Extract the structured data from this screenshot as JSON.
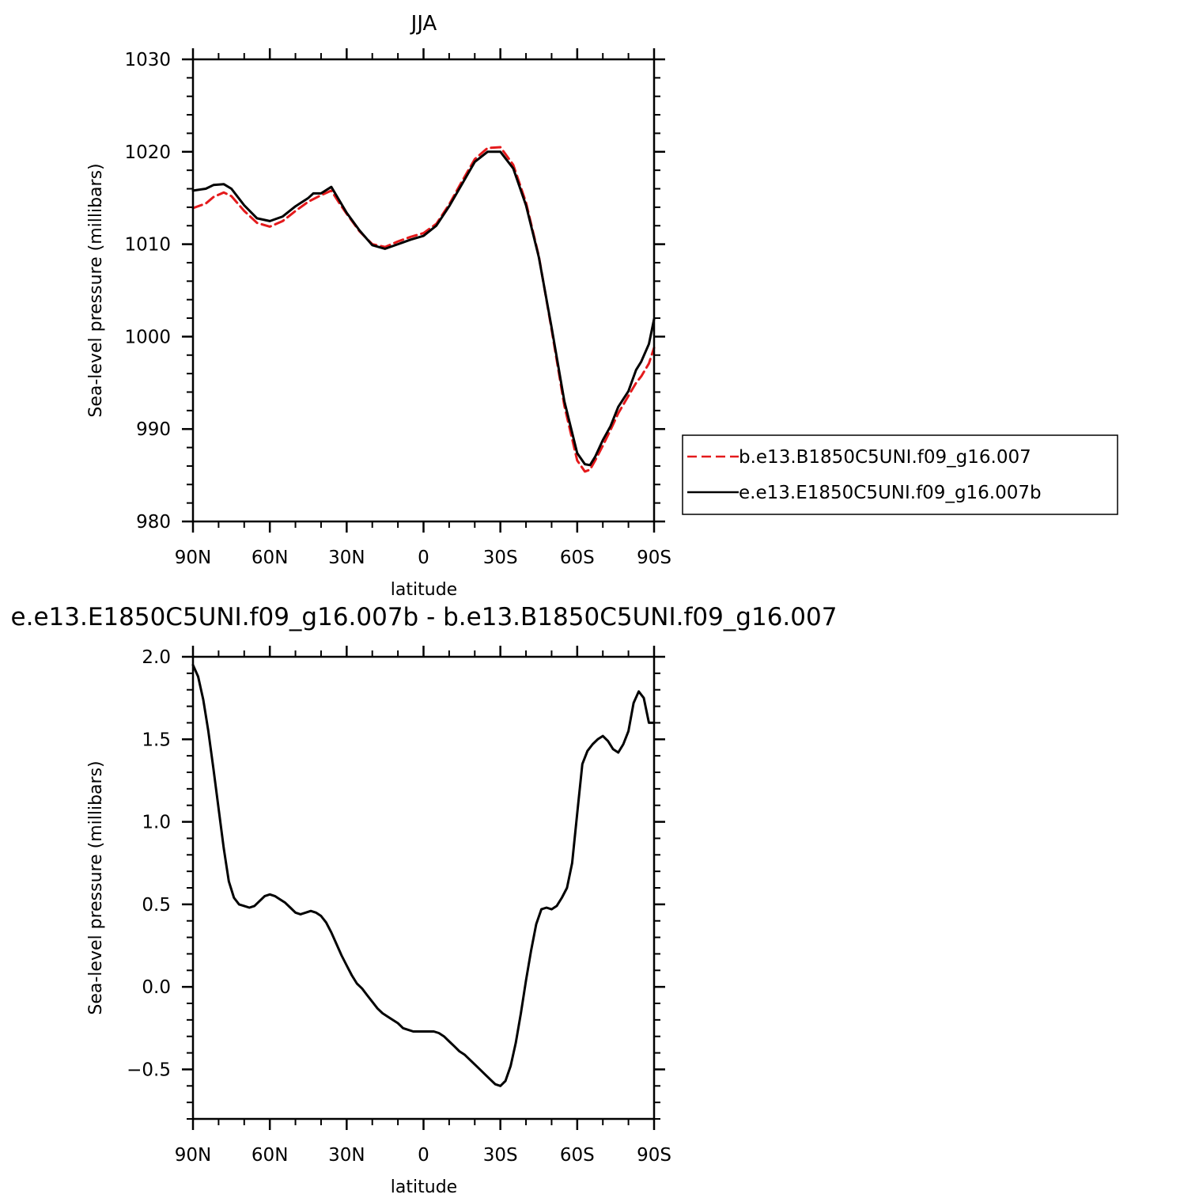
{
  "chart_data": [
    {
      "type": "line",
      "title": "JJA",
      "xlabel": "latitude",
      "ylabel": "Sea-level pressure (millibars)",
      "xlim": [
        90,
        -90
      ],
      "ylim": [
        980,
        1030
      ],
      "x_ticks": [
        {
          "value": 90,
          "label": "90N"
        },
        {
          "value": 60,
          "label": "60N"
        },
        {
          "value": 30,
          "label": "30N"
        },
        {
          "value": 0,
          "label": "0"
        },
        {
          "value": -30,
          "label": "30S"
        },
        {
          "value": -60,
          "label": "60S"
        },
        {
          "value": -90,
          "label": "90S"
        }
      ],
      "y_ticks": [
        {
          "value": 1030,
          "label": "1030"
        },
        {
          "value": 1020,
          "label": "1020"
        },
        {
          "value": 1010,
          "label": "1010"
        },
        {
          "value": 1000,
          "label": "1000"
        },
        {
          "value": 990,
          "label": "990"
        },
        {
          "value": 980,
          "label": "980"
        }
      ],
      "legend_position": "right",
      "series": [
        {
          "name": "b.e13.B1850C5UNI.f09_g16.007",
          "color": "#e41a1c",
          "dash": "dashed",
          "x": [
            90,
            85,
            82,
            78,
            75,
            70,
            65,
            60,
            55,
            50,
            45,
            40,
            36,
            33,
            30,
            25,
            20,
            15,
            10,
            5,
            0,
            -5,
            -10,
            -15,
            -20,
            -25,
            -30,
            -35,
            -40,
            -45,
            -50,
            -55,
            -60,
            -63,
            -65,
            -67,
            -70,
            -73,
            -76,
            -80,
            -83,
            -85,
            -88,
            -90
          ],
          "y": [
            1013.9,
            1014.4,
            1015.1,
            1015.6,
            1015.2,
            1013.6,
            1012.3,
            1011.9,
            1012.5,
            1013.6,
            1014.6,
            1015.3,
            1015.8,
            1014.5,
            1013.3,
            1011.4,
            1010.0,
            1009.7,
            1010.3,
            1010.8,
            1011.2,
            1012.2,
            1014.3,
            1016.8,
            1019.2,
            1020.4,
            1020.5,
            1018.6,
            1014.5,
            1008.7,
            1000.8,
            992.5,
            986.6,
            985.4,
            985.6,
            986.6,
            988.2,
            989.9,
            991.7,
            993.6,
            995.0,
            995.7,
            997.1,
            998.8
          ]
        },
        {
          "name": "e.e13.E1850C5UNI.f09_g16.007b",
          "color": "#000000",
          "dash": "solid",
          "x": [
            90,
            85,
            82,
            78,
            75,
            70,
            65,
            60,
            55,
            50,
            45,
            43,
            40,
            36,
            33,
            30,
            25,
            20,
            15,
            10,
            5,
            0,
            -5,
            -10,
            -15,
            -20,
            -25,
            -30,
            -35,
            -40,
            -45,
            -50,
            -55,
            -60,
            -63,
            -65,
            -67,
            -70,
            -73,
            -76,
            -80,
            -83,
            -85,
            -88,
            -90
          ],
          "y": [
            1015.8,
            1016.0,
            1016.4,
            1016.5,
            1016.0,
            1014.2,
            1012.8,
            1012.5,
            1013.0,
            1014.1,
            1015.0,
            1015.5,
            1015.5,
            1016.2,
            1014.8,
            1013.4,
            1011.5,
            1009.9,
            1009.5,
            1010.0,
            1010.5,
            1010.9,
            1012.0,
            1014.1,
            1016.5,
            1018.9,
            1020.0,
            1020.0,
            1018.2,
            1014.2,
            1008.6,
            1001.0,
            993.0,
            987.4,
            986.2,
            986.1,
            987.0,
            988.8,
            990.3,
            992.4,
            994.1,
            996.4,
            997.3,
            999.2,
            1001.9
          ]
        }
      ]
    },
    {
      "type": "line",
      "title": "e.e13.E1850C5UNI.f09_g16.007b - b.e13.B1850C5UNI.f09_g16.007",
      "xlabel": "latitude",
      "ylabel": "Sea-level pressure (millibars)",
      "xlim": [
        90,
        -90
      ],
      "ylim": [
        -0.8,
        2.0
      ],
      "x_ticks": [
        {
          "value": 90,
          "label": "90N"
        },
        {
          "value": 60,
          "label": "60N"
        },
        {
          "value": 30,
          "label": "30N"
        },
        {
          "value": 0,
          "label": "0"
        },
        {
          "value": -30,
          "label": "30S"
        },
        {
          "value": -60,
          "label": "60S"
        },
        {
          "value": -90,
          "label": "90S"
        }
      ],
      "y_ticks": [
        {
          "value": 2.0,
          "label": "2.0"
        },
        {
          "value": 1.5,
          "label": "1.5"
        },
        {
          "value": 1.0,
          "label": "1.0"
        },
        {
          "value": 0.5,
          "label": "0.5"
        },
        {
          "value": 0.0,
          "label": "0.0"
        },
        {
          "value": -0.5,
          "label": "−0.5"
        }
      ],
      "series": [
        {
          "color": "#000000",
          "dash": "solid",
          "x": [
            90,
            88,
            86,
            84,
            82,
            80,
            78,
            76,
            74,
            72,
            70,
            68,
            66,
            64,
            62,
            60,
            58,
            56,
            54,
            52,
            50,
            48,
            46,
            44,
            42,
            40,
            38,
            36,
            34,
            32,
            30,
            28,
            26,
            24,
            22,
            20,
            18,
            16,
            14,
            12,
            10,
            8,
            6,
            4,
            2,
            0,
            -2,
            -4,
            -6,
            -8,
            -10,
            -12,
            -14,
            -16,
            -18,
            -20,
            -22,
            -24,
            -26,
            -28,
            -30,
            -32,
            -34,
            -36,
            -38,
            -40,
            -42,
            -44,
            -46,
            -48,
            -50,
            -52,
            -54,
            -56,
            -58,
            -60,
            -62,
            -64,
            -66,
            -68,
            -70,
            -72,
            -74,
            -76,
            -78,
            -80,
            -82,
            -84,
            -86,
            -88,
            -89,
            -90
          ],
          "y": [
            1.95,
            1.88,
            1.74,
            1.55,
            1.32,
            1.08,
            0.84,
            0.64,
            0.54,
            0.5,
            0.49,
            0.48,
            0.49,
            0.52,
            0.55,
            0.56,
            0.55,
            0.53,
            0.51,
            0.48,
            0.45,
            0.44,
            0.45,
            0.46,
            0.45,
            0.43,
            0.39,
            0.33,
            0.26,
            0.19,
            0.13,
            0.07,
            0.02,
            -0.01,
            -0.05,
            -0.09,
            -0.13,
            -0.16,
            -0.18,
            -0.2,
            -0.22,
            -0.25,
            -0.26,
            -0.27,
            -0.27,
            -0.27,
            -0.27,
            -0.27,
            -0.28,
            -0.3,
            -0.33,
            -0.36,
            -0.39,
            -0.41,
            -0.44,
            -0.47,
            -0.5,
            -0.53,
            -0.56,
            -0.59,
            -0.6,
            -0.57,
            -0.48,
            -0.34,
            -0.16,
            0.04,
            0.22,
            0.38,
            0.47,
            0.48,
            0.47,
            0.49,
            0.54,
            0.6,
            0.75,
            1.05,
            1.35,
            1.43,
            1.47,
            1.5,
            1.52,
            1.49,
            1.44,
            1.42,
            1.47,
            1.55,
            1.72,
            1.79,
            1.75,
            1.6,
            1.6,
            1.6
          ]
        }
      ]
    }
  ]
}
